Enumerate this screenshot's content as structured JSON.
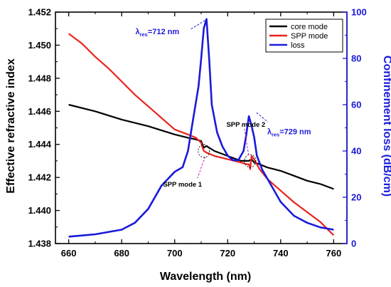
{
  "chart_data": {
    "type": "line",
    "xlabel": "Wavelength (nm)",
    "ylabel": "Effective refractive index",
    "ylabel_right": "Confinement loss (dB/cm)",
    "xlim": [
      655,
      765
    ],
    "ylim": [
      1.438,
      1.452
    ],
    "ylim_right": [
      0,
      100
    ],
    "x_ticks": [
      "660",
      "680",
      "700",
      "720",
      "740",
      "760"
    ],
    "y_ticks": [
      "1.438",
      "1.440",
      "1.442",
      "1.444",
      "1.446",
      "1.448",
      "1.450",
      "1.452"
    ],
    "y_ticks_right": [
      "0",
      "20",
      "40",
      "60",
      "80",
      "100"
    ],
    "legend_position": "top-right",
    "series": [
      {
        "name": "core mode",
        "axis": "left",
        "color": "#000000",
        "x": [
          660,
          670,
          680,
          690,
          700,
          705,
          708,
          710,
          711,
          712,
          713,
          715,
          720,
          725,
          728,
          729,
          730,
          732,
          735,
          740,
          745,
          750,
          755,
          760
        ],
        "y": [
          1.4464,
          1.446,
          1.4455,
          1.4451,
          1.4446,
          1.4444,
          1.4443,
          1.4442,
          1.4438,
          1.4439,
          1.4438,
          1.4436,
          1.4433,
          1.443,
          1.443,
          1.4431,
          1.4429,
          1.4428,
          1.4426,
          1.4424,
          1.4421,
          1.4418,
          1.4416,
          1.4413
        ]
      },
      {
        "name": "SPP mode",
        "axis": "left",
        "color": "#e8231e",
        "x": [
          660,
          665,
          670,
          675,
          680,
          685,
          690,
          695,
          700,
          705,
          708,
          710,
          710.5,
          711,
          712,
          715,
          720,
          725,
          727,
          728,
          728.5,
          729,
          730,
          732,
          735,
          740,
          745,
          750,
          755,
          760
        ],
        "y": [
          1.4507,
          1.4501,
          1.4493,
          1.4486,
          1.4478,
          1.447,
          1.4463,
          1.4456,
          1.4449,
          1.4446,
          1.4444,
          1.4441,
          1.4438,
          1.4436,
          1.4435,
          1.4433,
          1.4431,
          1.4429,
          1.4428,
          1.4428,
          1.4425,
          1.4433,
          1.4431,
          1.4425,
          1.4419,
          1.4412,
          1.4405,
          1.4399,
          1.4393,
          1.4385
        ]
      },
      {
        "name": "loss",
        "axis": "right",
        "color": "#1a1adb",
        "x": [
          660,
          670,
          680,
          685,
          690,
          695,
          700,
          703,
          705,
          707,
          709,
          710,
          711,
          712,
          713,
          714,
          716,
          718,
          720,
          722,
          724,
          726,
          727,
          728,
          729,
          730,
          731,
          733,
          735,
          740,
          745,
          750,
          755,
          760
        ],
        "y": [
          3,
          4,
          6,
          9,
          15,
          25,
          31,
          33,
          40,
          54,
          68,
          80,
          93,
          97,
          80,
          60,
          48,
          42,
          38,
          36,
          36,
          40,
          47,
          55,
          51,
          46,
          38,
          32,
          28,
          18,
          12,
          9,
          7,
          6
        ]
      }
    ],
    "annotations": [
      {
        "label": "SPP mode 1",
        "x": 711,
        "y": 1.4436
      },
      {
        "label": "SPP mode 2",
        "x": 729,
        "y": 1.443
      },
      {
        "label": "λres=712 nm",
        "base": "λ",
        "sub": "res",
        "tail": "=712 nm",
        "x": 712,
        "loss": 97
      },
      {
        "label": "λres=729 nm",
        "base": "λ",
        "sub": "res",
        "tail": "=729 nm",
        "x": 729,
        "loss": 51
      }
    ]
  }
}
